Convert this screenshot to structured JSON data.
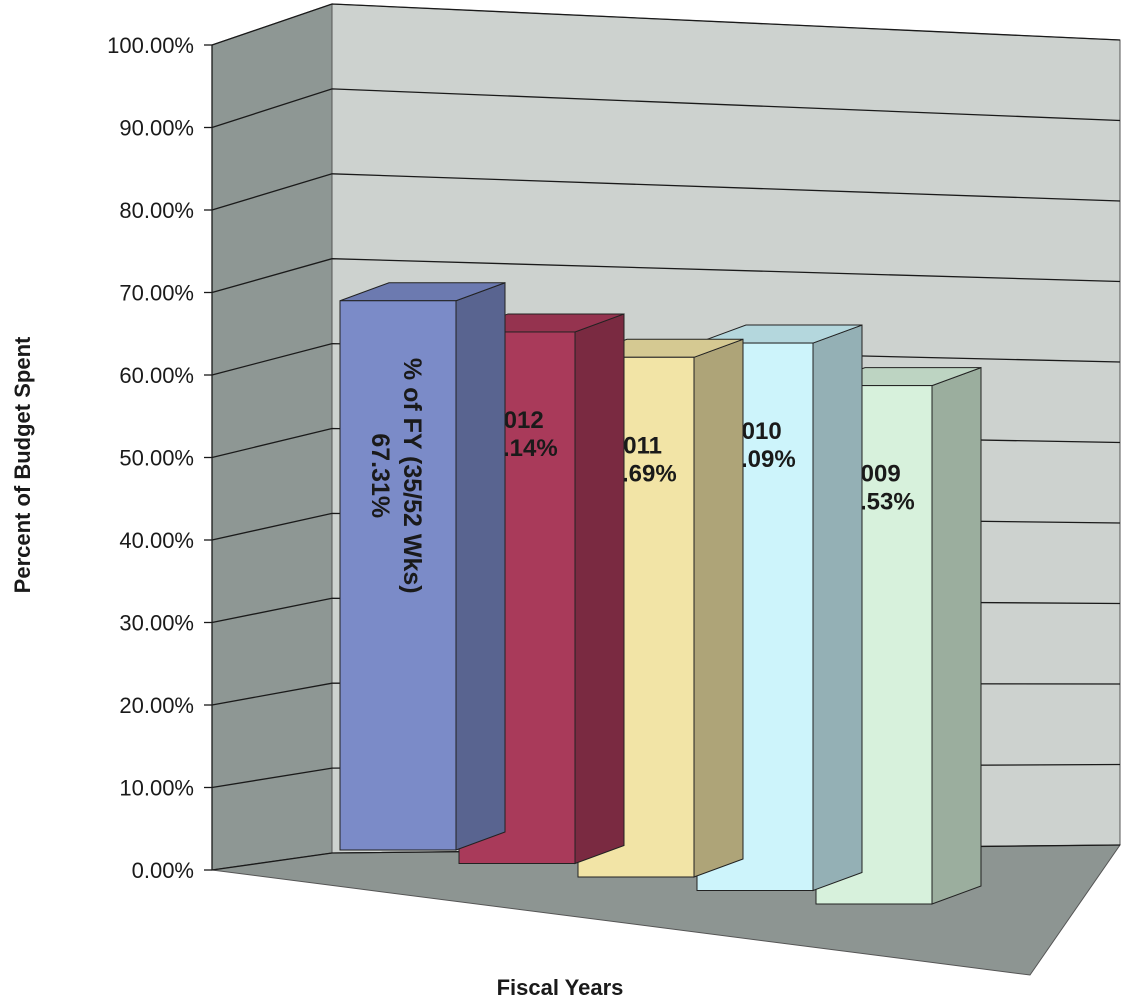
{
  "chart_data": {
    "type": "bar",
    "title": "",
    "xlabel": "Fiscal Years",
    "ylabel": "Percent of Budget Spent",
    "ylim": [
      0,
      100
    ],
    "y_ticks": [
      "0.00%",
      "10.00%",
      "20.00%",
      "30.00%",
      "40.00%",
      "50.00%",
      "60.00%",
      "70.00%",
      "80.00%",
      "90.00%",
      "100.00%"
    ],
    "grid": true,
    "three_d": true,
    "legend": "none",
    "bars": [
      {
        "value": 67.31,
        "label_lines": [
          "% of FY (35/52 Wks)",
          "67.31%"
        ],
        "label_orientation": "vertical",
        "color": "#7b8bc8"
      },
      {
        "value": 65.14,
        "label_lines": [
          "2012",
          "65.14%"
        ],
        "label_orientation": "horizontal",
        "color": "#a93a5a"
      },
      {
        "value": 63.69,
        "label_lines": [
          "2011",
          "63.69%"
        ],
        "label_orientation": "horizontal",
        "color": "#f2e4a6"
      },
      {
        "value": 67.09,
        "label_lines": [
          "2010",
          "67.09%"
        ],
        "label_orientation": "horizontal",
        "color": "#cdf4fb"
      },
      {
        "value": 63.53,
        "label_lines": [
          "2009",
          "63.53%"
        ],
        "label_orientation": "horizontal",
        "color": "#d7f1dc"
      }
    ],
    "colors": {
      "back_wall": "#cdd2cf",
      "side_wall": "#8e9794",
      "floor": "#8d9592",
      "gridline": "#1a1a1a",
      "text": "#1a1a1a"
    }
  }
}
